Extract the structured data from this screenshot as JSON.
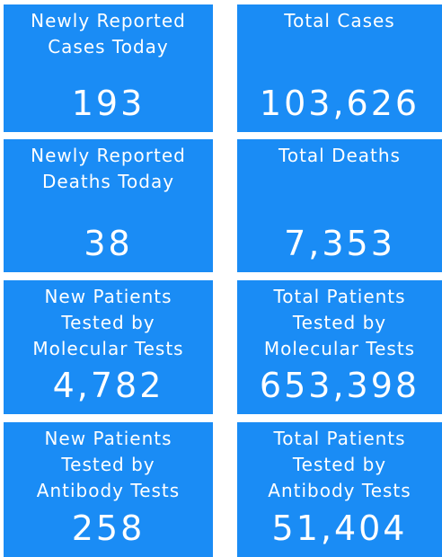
{
  "tiles": [
    {
      "label": "Newly Reported Cases Today",
      "value": "193"
    },
    {
      "label": "Total Cases",
      "value": "103,626"
    },
    {
      "label": "Newly Reported Deaths Today",
      "value": "38"
    },
    {
      "label": "Total Deaths",
      "value": "7,353"
    },
    {
      "label": "New Patients Tested by Molecular Tests",
      "value": "4,782"
    },
    {
      "label": "Total Patients Tested by Molecular Tests",
      "value": "653,398"
    },
    {
      "label": "New Patients Tested by Antibody Tests",
      "value": "258"
    },
    {
      "label": "Total Patients Tested by Antibody Tests",
      "value": "51,404"
    }
  ]
}
